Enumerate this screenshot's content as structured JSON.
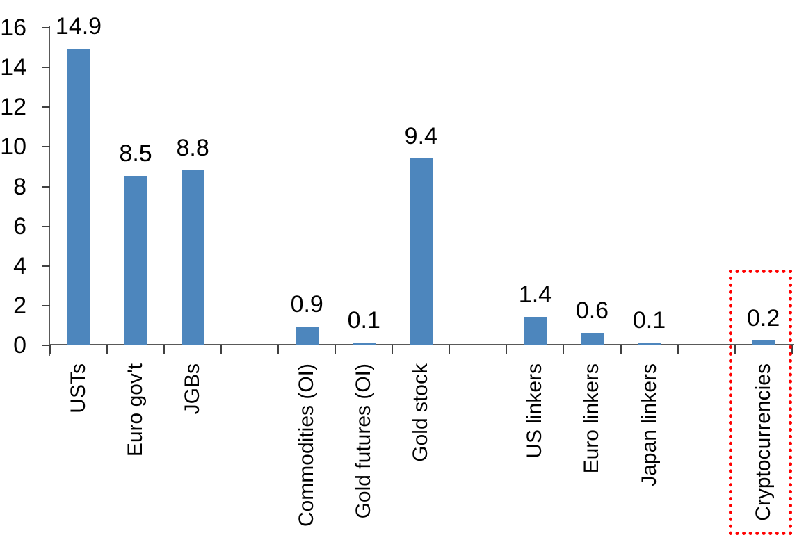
{
  "chart_data": {
    "type": "bar",
    "title": "",
    "xlabel": "",
    "ylabel": "",
    "ylim": [
      0,
      16
    ],
    "yticks": [
      0,
      2,
      4,
      6,
      8,
      10,
      12,
      14,
      16
    ],
    "grid": false,
    "legend": false,
    "bar_color": "#4D86BD",
    "axis_color": "#595959",
    "tick_color": "#404040",
    "text_color": "#000000",
    "highlight_box_color": "#FF0000",
    "highlight_box_style": "dotted",
    "highlighted_category": "Cryptocurrencies",
    "categories": [
      "USTs",
      "Euro gov't",
      "JGBs",
      "",
      "Commodities (OI)",
      "Gold futures (OI)",
      "Gold stock",
      "",
      "US linkers",
      "Euro linkers",
      "Japan linkers",
      "",
      "Cryptocurrencies"
    ],
    "values": [
      14.9,
      8.5,
      8.8,
      null,
      0.9,
      0.1,
      9.4,
      null,
      1.4,
      0.6,
      0.1,
      null,
      0.2
    ],
    "data_labels": [
      "14.9",
      "8.5",
      "8.8",
      "",
      "0.9",
      "0.1",
      "9.4",
      "",
      "1.4",
      "0.6",
      "0.1",
      "",
      "0.2"
    ]
  }
}
